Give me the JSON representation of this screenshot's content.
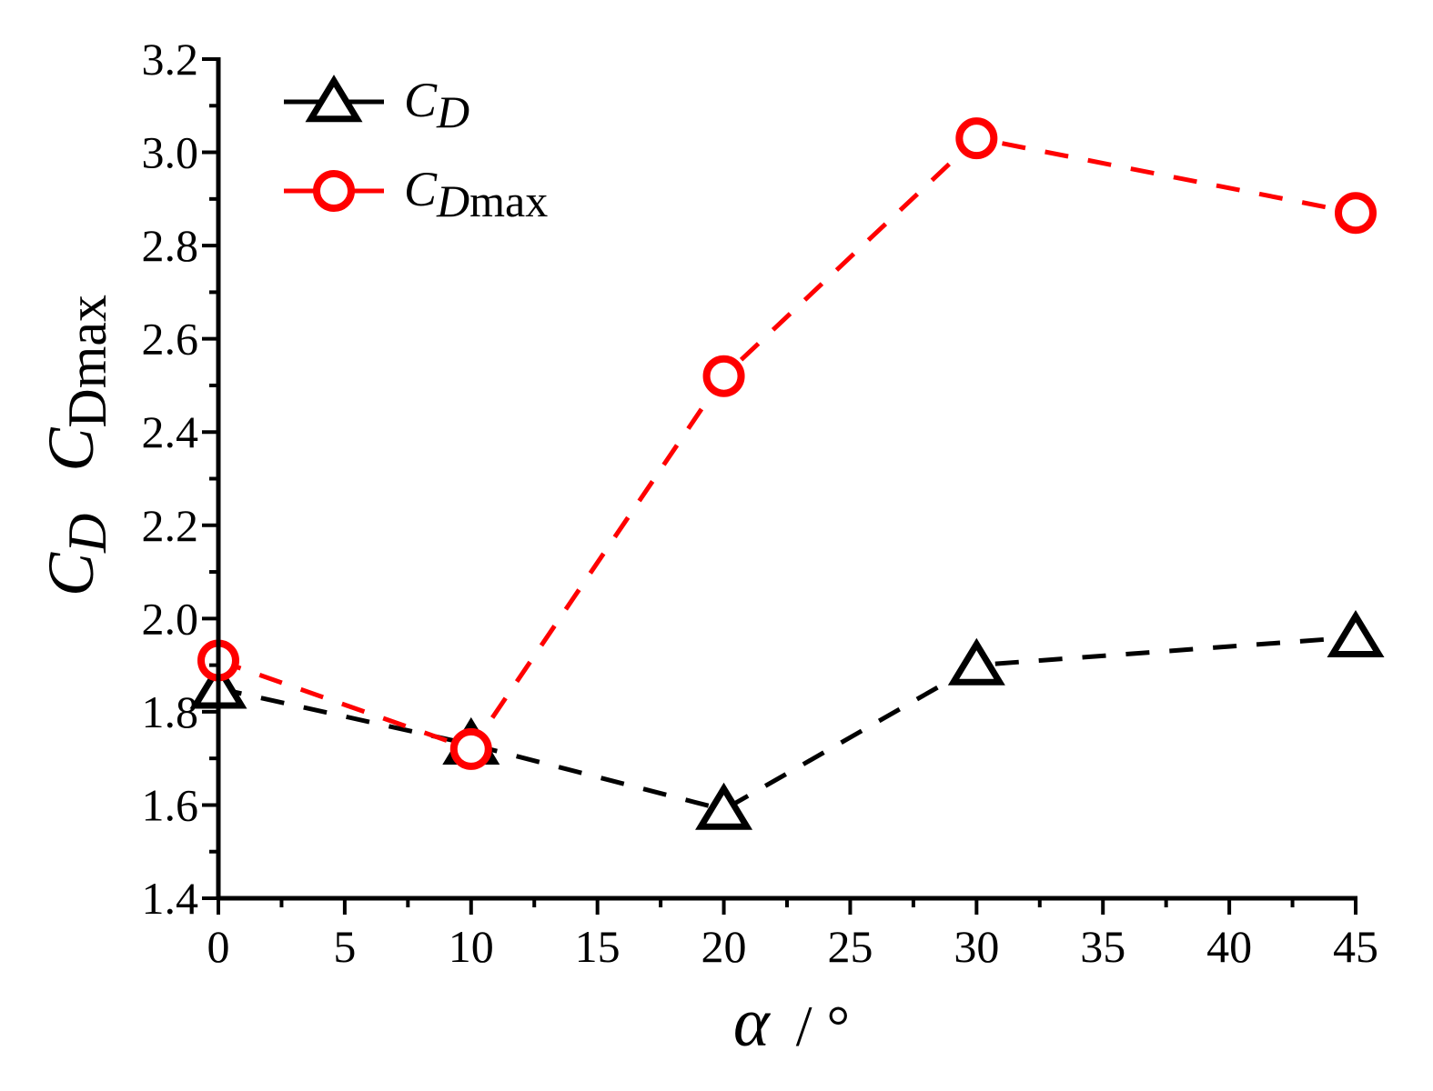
{
  "chart_data": {
    "type": "line",
    "x": [
      0,
      10,
      20,
      30,
      45
    ],
    "xlim": [
      0,
      45
    ],
    "ylim": [
      1.4,
      3.2
    ],
    "x_ticks": [
      0,
      5,
      10,
      15,
      20,
      25,
      30,
      35,
      40,
      45
    ],
    "y_ticks": [
      1.4,
      1.6,
      1.8,
      2.0,
      2.2,
      2.4,
      2.6,
      2.8,
      3.0,
      3.2
    ],
    "x_tick_labels": [
      "0",
      "5",
      "10",
      "15",
      "20",
      "25",
      "30",
      "35",
      "40",
      "45"
    ],
    "y_tick_labels": [
      "1.4",
      "1.6",
      "1.8",
      "2.0",
      "2.2",
      "2.4",
      "2.6",
      "2.8",
      "3.0",
      "3.2"
    ],
    "xlabel": {
      "symbol": "α",
      "unit": "/ °"
    },
    "ylabel": {
      "c1": "C",
      "s1": "D",
      "c2": "C",
      "s2": "Dmax"
    },
    "legend_position": "top-left",
    "grid": false,
    "series": [
      {
        "legend_main": "C",
        "legend_sub": "D",
        "values": [
          1.85,
          1.73,
          1.59,
          1.9,
          1.96
        ],
        "color": "#000000",
        "marker": "triangle",
        "line_style": "dashed"
      },
      {
        "legend_main": "C",
        "legend_sub": "Dmax",
        "values": [
          1.91,
          1.72,
          2.52,
          3.03,
          2.87
        ],
        "color": "#ff0000",
        "marker": "circle",
        "line_style": "dashed"
      }
    ]
  }
}
